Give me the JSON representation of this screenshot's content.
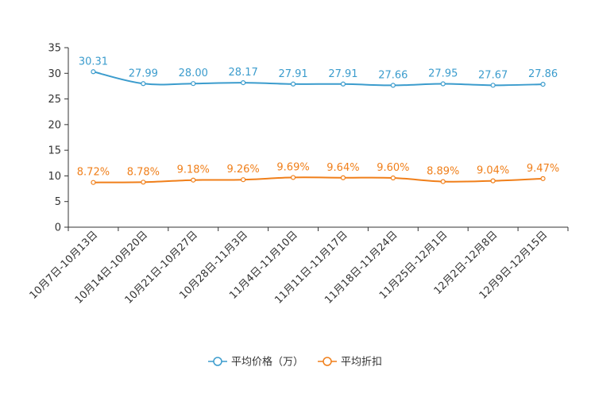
{
  "chart_data": {
    "type": "line",
    "title": "",
    "xlabel": "",
    "ylabel": "",
    "ylim": [
      0,
      35
    ],
    "yticks": [
      0,
      5,
      10,
      15,
      20,
      25,
      30,
      35
    ],
    "categories": [
      "10月7日-10月13日",
      "10月14日-10月20日",
      "10月21日-10月27日",
      "10月28日-11月3日",
      "11月4日-11月10日",
      "11月11日-11月17日",
      "11月18日-11月24日",
      "11月25日-12月1日",
      "12月2日-12月8日",
      "12月9日-12月15日"
    ],
    "series": [
      {
        "name": "平均价格（万）",
        "color": "#3b9ccd",
        "values": [
          30.31,
          27.99,
          28.0,
          28.17,
          27.91,
          27.91,
          27.66,
          27.95,
          27.67,
          27.86
        ],
        "labels": [
          "30.31",
          "27.99",
          "28.00",
          "28.17",
          "27.91",
          "27.91",
          "27.66",
          "27.95",
          "27.67",
          "27.86"
        ]
      },
      {
        "name": "平均折扣",
        "color": "#f07f1a",
        "values": [
          8.72,
          8.78,
          9.18,
          9.26,
          9.69,
          9.64,
          9.6,
          8.89,
          9.04,
          9.47
        ],
        "labels": [
          "8.72%",
          "8.78%",
          "9.18%",
          "9.26%",
          "9.69%",
          "9.64%",
          "9.60%",
          "8.89%",
          "9.04%",
          "9.47%"
        ]
      }
    ],
    "legend_position": "bottom-center",
    "grid": false
  }
}
